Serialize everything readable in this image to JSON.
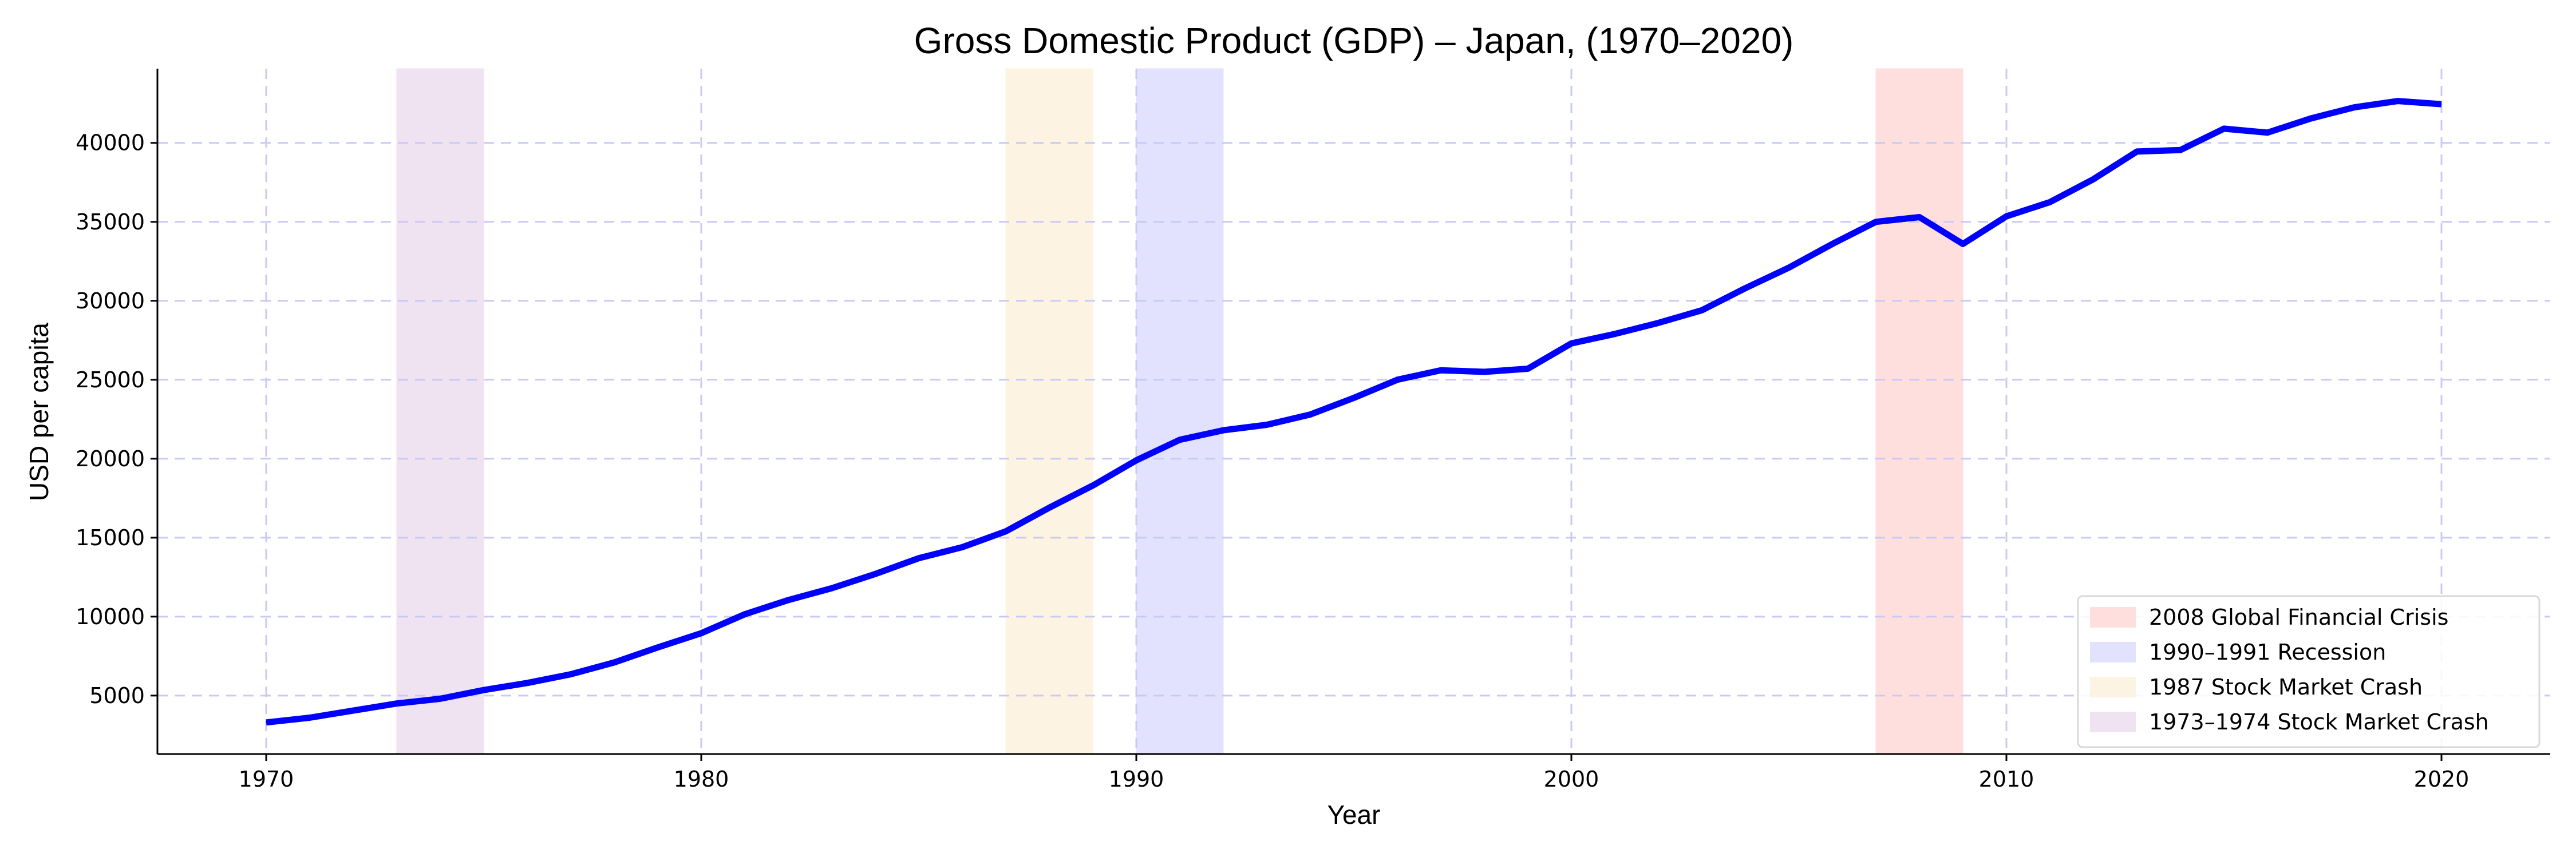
{
  "colors": {
    "line": "#0000ff",
    "grid": "#c9c9f5",
    "axis": "#000000",
    "legend_border": "#d9d9d9"
  },
  "chart_data": {
    "type": "line",
    "title": "Gross Domestic Product (GDP) – Japan, (1970–2020)",
    "xlabel": "Year",
    "ylabel": "USD per capita",
    "xlim": [
      1967.5,
      2022.5
    ],
    "ylim": [
      1300,
      44700
    ],
    "xticks": [
      1970,
      1980,
      1990,
      2000,
      2010,
      2020
    ],
    "yticks": [
      5000,
      10000,
      15000,
      20000,
      25000,
      30000,
      35000,
      40000
    ],
    "grid": true,
    "legend_position": "lower-right",
    "series": [
      {
        "color": "#0000ff",
        "x": [
          1970,
          1971,
          1972,
          1973,
          1974,
          1975,
          1976,
          1977,
          1978,
          1979,
          1980,
          1981,
          1982,
          1983,
          1984,
          1985,
          1986,
          1987,
          1988,
          1989,
          1990,
          1991,
          1992,
          1993,
          1994,
          1995,
          1996,
          1997,
          1998,
          1999,
          2000,
          2001,
          2002,
          2003,
          2004,
          2005,
          2006,
          2007,
          2008,
          2009,
          2010,
          2011,
          2012,
          2013,
          2014,
          2015,
          2016,
          2017,
          2018,
          2019,
          2020
        ],
        "y": [
          3300,
          3600,
          4050,
          4500,
          4800,
          5350,
          5800,
          6350,
          7100,
          8050,
          8950,
          10150,
          11050,
          11800,
          12700,
          13700,
          14400,
          15400,
          16900,
          18300,
          19900,
          21200,
          21800,
          22150,
          22800,
          23850,
          25000,
          25600,
          25500,
          25700,
          27300,
          27900,
          28600,
          29400,
          30800,
          32100,
          33600,
          35000,
          35300,
          33600,
          35350,
          36250,
          37700,
          39450,
          39550,
          40900,
          40650,
          41550,
          42250,
          42650,
          42450
        ]
      }
    ],
    "shaded_periods": [
      {
        "label": "2008 Global Financial Crisis",
        "start": 2007,
        "end": 2009,
        "color": "#ffdede"
      },
      {
        "label": "1990–1991 Recession",
        "start": 1990,
        "end": 1992,
        "color": "#e2e2fe"
      },
      {
        "label": "1987 Stock Market Crash",
        "start": 1987,
        "end": 1989,
        "color": "#fdf3e3"
      },
      {
        "label": "1973–1974 Stock Market Crash",
        "start": 1973,
        "end": 1975,
        "color": "#efe3f1"
      }
    ]
  }
}
